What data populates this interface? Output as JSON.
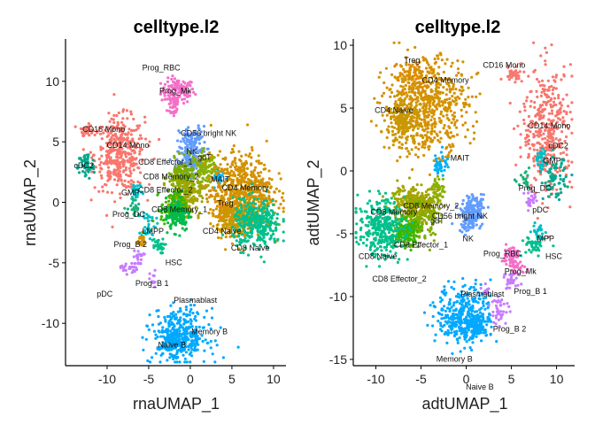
{
  "chart_data": [
    {
      "type": "scatter",
      "title": "celltype.l2",
      "xlabel": "rnaUMAP_1",
      "ylabel": "rnaUMAP_2",
      "xlim": [
        -15,
        11.5
      ],
      "ylim": [
        -13.5,
        13.5
      ],
      "xticks": [
        -10,
        -5,
        0,
        5,
        10
      ],
      "yticks": [
        -10,
        -5,
        0,
        5,
        10
      ],
      "clusters": [
        {
          "name": "Prog_RBC",
          "color": "#f46fc8",
          "center": [
            -1.5,
            9.2
          ],
          "spread": [
            3.2,
            1.6
          ],
          "n": 120
        },
        {
          "name": "Prog_Mk",
          "color": "#f46fc8",
          "center": [
            -2.0,
            8.0
          ],
          "spread": [
            1.2,
            1.6
          ],
          "n": 40
        },
        {
          "name": "CD16 Mono",
          "color": "#f8766d",
          "center": [
            -12.5,
            6.0
          ],
          "spread": [
            1.2,
            0.7
          ],
          "n": 40
        },
        {
          "name": "CD14 Mono",
          "color": "#f8766d",
          "center": [
            -8.5,
            4.0
          ],
          "spread": [
            4.8,
            4.8
          ],
          "n": 380
        },
        {
          "name": "cDC2",
          "color": "#00a98f",
          "center": [
            -12.5,
            3.0
          ],
          "spread": [
            1.6,
            1.8
          ],
          "n": 60
        },
        {
          "name": "GMP",
          "color": "#00bfc4",
          "center": [
            -6.5,
            1.0
          ],
          "spread": [
            1.2,
            1.4
          ],
          "n": 30
        },
        {
          "name": "Prog_DC",
          "color": "#19b37a",
          "center": [
            -6.8,
            -0.6
          ],
          "spread": [
            1.2,
            1.4
          ],
          "n": 25
        },
        {
          "name": "LMPP",
          "color": "#00bfc4",
          "center": [
            -5.0,
            -1.8
          ],
          "spread": [
            1.4,
            2.0
          ],
          "n": 40
        },
        {
          "name": "Prog_B 2",
          "color": "#d39200",
          "center": [
            -6.0,
            -3.2
          ],
          "spread": [
            1.2,
            1.0
          ],
          "n": 20
        },
        {
          "name": "HSC",
          "color": "#00c08b",
          "center": [
            -4.0,
            -3.6
          ],
          "spread": [
            1.4,
            1.0
          ],
          "n": 30
        },
        {
          "name": "Prog_B 1",
          "color": "#c77cff",
          "center": [
            -6.2,
            -4.6
          ],
          "spread": [
            1.0,
            1.0
          ],
          "n": 20
        },
        {
          "name": "pDC",
          "color": "#c77cff",
          "center": [
            -7.4,
            -5.4
          ],
          "spread": [
            1.6,
            0.8
          ],
          "n": 25
        },
        {
          "name": "Plasmablast",
          "color": "#c77cff",
          "center": [
            -4.5,
            -6.5
          ],
          "spread": [
            0.6,
            1.4
          ],
          "n": 15
        },
        {
          "name": "CD56 bright NK",
          "color": "#619cff",
          "center": [
            0.3,
            5.0
          ],
          "spread": [
            2.6,
            2.0
          ],
          "n": 100
        },
        {
          "name": "NK",
          "color": "#619cff",
          "center": [
            0.0,
            3.3
          ],
          "spread": [
            2.6,
            1.8
          ],
          "n": 120
        },
        {
          "name": "gdT",
          "color": "#8ab000",
          "center": [
            1.8,
            2.8
          ],
          "spread": [
            2.2,
            2.2
          ],
          "n": 120
        },
        {
          "name": "CD8 Effector_1",
          "color": "#7cae00",
          "center": [
            -1.0,
            2.0
          ],
          "spread": [
            2.6,
            2.4
          ],
          "n": 160
        },
        {
          "name": "CD8 Memory_2",
          "color": "#a3a500",
          "center": [
            -0.5,
            0.5
          ],
          "spread": [
            2.8,
            2.4
          ],
          "n": 160
        },
        {
          "name": "CD8 Effector_2",
          "color": "#39b600",
          "center": [
            -2.0,
            -0.5
          ],
          "spread": [
            2.4,
            2.2
          ],
          "n": 140
        },
        {
          "name": "CD8 Memory_1",
          "color": "#00bb4e",
          "center": [
            -1.5,
            -1.0
          ],
          "spread": [
            2.4,
            2.2
          ],
          "n": 120
        },
        {
          "name": "MAIT",
          "color": "#00b0f6",
          "center": [
            3.5,
            2.0
          ],
          "spread": [
            1.2,
            1.2
          ],
          "n": 30
        },
        {
          "name": "Treg",
          "color": "#e58700",
          "center": [
            4.0,
            -0.5
          ],
          "spread": [
            1.6,
            1.4
          ],
          "n": 50
        },
        {
          "name": "CD4 Memory",
          "color": "#d39200",
          "center": [
            6.2,
            0.8
          ],
          "spread": [
            6.0,
            5.0
          ],
          "n": 650
        },
        {
          "name": "CD4 Naive",
          "color": "#c99800",
          "center": [
            5.0,
            -1.5
          ],
          "spread": [
            3.0,
            2.2
          ],
          "n": 160
        },
        {
          "name": "CD8 Naive",
          "color": "#00c08b",
          "center": [
            8.0,
            -1.8
          ],
          "spread": [
            4.6,
            3.2
          ],
          "n": 320
        },
        {
          "name": "Memory B",
          "color": "#00a9ff",
          "center": [
            -1.2,
            -11.0
          ],
          "spread": [
            5.2,
            3.4
          ],
          "n": 360
        },
        {
          "name": "Naive B",
          "color": "#00a9ff",
          "center": [
            -2.2,
            -11.6
          ],
          "spread": [
            2.0,
            1.4
          ],
          "n": 80
        }
      ],
      "labels": [
        {
          "text": "Prog_RBC",
          "at": [
            -3.5,
            10.9
          ]
        },
        {
          "text": "Prog_Mk",
          "at": [
            -1.8,
            9.0
          ]
        },
        {
          "text": "CD16 Mono",
          "at": [
            -10.4,
            5.8
          ]
        },
        {
          "text": "CD14 Mono",
          "at": [
            -7.5,
            4.5
          ]
        },
        {
          "text": "cDC2",
          "at": [
            -12.8,
            2.8
          ]
        },
        {
          "text": "CD8 Effector_1",
          "at": [
            -3.0,
            3.1
          ]
        },
        {
          "text": "CD56 bright NK",
          "at": [
            2.2,
            5.5
          ]
        },
        {
          "text": "NK",
          "at": [
            0.2,
            4.0
          ]
        },
        {
          "text": "gdT",
          "at": [
            1.7,
            3.5
          ]
        },
        {
          "text": "MAIT",
          "at": [
            3.6,
            1.7
          ]
        },
        {
          "text": "CD8 Memory_2",
          "at": [
            -2.3,
            1.9
          ]
        },
        {
          "text": "GMP",
          "at": [
            -7.2,
            0.6
          ]
        },
        {
          "text": "CD8 Effector_2",
          "at": [
            -3.0,
            0.8
          ]
        },
        {
          "text": "CD4 Memory",
          "at": [
            6.6,
            1.0
          ]
        },
        {
          "text": "Treg",
          "at": [
            4.2,
            -0.3
          ]
        },
        {
          "text": "CD8 Memory_1",
          "at": [
            -1.3,
            -0.8
          ]
        },
        {
          "text": "Prog_DC",
          "at": [
            -7.4,
            -1.2
          ]
        },
        {
          "text": "LMPP",
          "at": [
            -4.5,
            -2.6
          ]
        },
        {
          "text": "CD4 Naive",
          "at": [
            3.8,
            -2.6
          ]
        },
        {
          "text": "Prog_B 2",
          "at": [
            -7.2,
            -3.7
          ]
        },
        {
          "text": "CD8 Naive",
          "at": [
            7.2,
            -4.0
          ]
        },
        {
          "text": "HSC",
          "at": [
            -2.0,
            -5.2
          ]
        },
        {
          "text": "Prog_B 1",
          "at": [
            -4.6,
            -6.9
          ]
        },
        {
          "text": "pDC",
          "at": [
            -10.3,
            -7.8
          ]
        },
        {
          "text": "Plasmablast",
          "at": [
            0.6,
            -8.3
          ]
        },
        {
          "text": "Memory B",
          "at": [
            2.3,
            -10.9
          ]
        },
        {
          "text": "Naive B",
          "at": [
            -2.2,
            -12.0
          ]
        }
      ]
    },
    {
      "type": "scatter",
      "title": "celltype.l2",
      "xlabel": "adtUMAP_1",
      "ylabel": "adtUMAP_2",
      "xlim": [
        -12.5,
        12
      ],
      "ylim": [
        -15.5,
        10.5
      ],
      "xticks": [
        -10,
        -5,
        0,
        5,
        10
      ],
      "yticks": [
        -15,
        -10,
        -5,
        0,
        5,
        10
      ],
      "clusters": [
        {
          "name": "Treg",
          "color": "#e58700",
          "center": [
            -5.8,
            7.5
          ],
          "spread": [
            3.0,
            2.2
          ],
          "n": 60
        },
        {
          "name": "CD4 Memory",
          "color": "#d39200",
          "center": [
            -4.5,
            5.2
          ],
          "spread": [
            7.5,
            6.0
          ],
          "n": 650
        },
        {
          "name": "CD4 Naive",
          "color": "#c99800",
          "center": [
            -7.0,
            3.8
          ],
          "spread": [
            3.0,
            2.6
          ],
          "n": 160
        },
        {
          "name": "CD16 Mono",
          "color": "#f8766d",
          "center": [
            5.2,
            7.8
          ],
          "spread": [
            1.8,
            0.9
          ],
          "n": 30
        },
        {
          "name": "CD14 Mono",
          "color": "#f8766d",
          "center": [
            9.0,
            3.2
          ],
          "spread": [
            4.4,
            8.0
          ],
          "n": 380
        },
        {
          "name": "cDC2",
          "color": "#00a98f",
          "center": [
            9.8,
            -0.6
          ],
          "spread": [
            2.0,
            2.6
          ],
          "n": 70
        },
        {
          "name": "GMP",
          "color": "#00bfc4",
          "center": [
            8.3,
            1.0
          ],
          "spread": [
            1.2,
            1.4
          ],
          "n": 30
        },
        {
          "name": "Prog_DC",
          "color": "#19b37a",
          "center": [
            6.5,
            -1.0
          ],
          "spread": [
            1.2,
            1.2
          ],
          "n": 20
        },
        {
          "name": "pDC",
          "color": "#c77cff",
          "center": [
            7.2,
            -2.4
          ],
          "spread": [
            1.2,
            1.2
          ],
          "n": 25
        },
        {
          "name": "MPP",
          "color": "#00bfc4",
          "center": [
            8.0,
            -5.0
          ],
          "spread": [
            1.2,
            1.6
          ],
          "n": 30
        },
        {
          "name": "HSC",
          "color": "#00c08b",
          "center": [
            7.4,
            -6.0
          ],
          "spread": [
            2.0,
            1.4
          ],
          "n": 40
        },
        {
          "name": "Prog_RBC",
          "color": "#f46fc8",
          "center": [
            4.8,
            -6.6
          ],
          "spread": [
            1.6,
            1.0
          ],
          "n": 40
        },
        {
          "name": "Prog_Mk",
          "color": "#f46fc8",
          "center": [
            5.5,
            -7.6
          ],
          "spread": [
            2.0,
            1.0
          ],
          "n": 40
        },
        {
          "name": "Prog_B 1",
          "color": "#c77cff",
          "center": [
            5.0,
            -8.8
          ],
          "spread": [
            1.6,
            1.2
          ],
          "n": 30
        },
        {
          "name": "Prog_B 2",
          "color": "#c77cff",
          "center": [
            3.6,
            -11.0
          ],
          "spread": [
            1.8,
            2.0
          ],
          "n": 40
        },
        {
          "name": "Plasmablast",
          "color": "#c77cff",
          "center": [
            2.4,
            -9.4
          ],
          "spread": [
            0.8,
            0.8
          ],
          "n": 10
        },
        {
          "name": "MAIT",
          "color": "#00b0f6",
          "center": [
            -2.8,
            0.6
          ],
          "spread": [
            1.2,
            1.6
          ],
          "n": 40
        },
        {
          "name": "gdT",
          "color": "#8ab000",
          "center": [
            -3.2,
            -1.5
          ],
          "spread": [
            1.4,
            1.6
          ],
          "n": 50
        },
        {
          "name": "CD56 bright NK",
          "color": "#619cff",
          "center": [
            1.2,
            -2.8
          ],
          "spread": [
            1.6,
            1.2
          ],
          "n": 60
        },
        {
          "name": "NK",
          "color": "#619cff",
          "center": [
            0.4,
            -3.6
          ],
          "spread": [
            2.0,
            2.0
          ],
          "n": 120
        },
        {
          "name": "CD8 Memory",
          "color": "#a3a500",
          "center": [
            -6.5,
            -2.4
          ],
          "spread": [
            3.2,
            2.2
          ],
          "n": 150
        },
        {
          "name": "CD8 Memory_2",
          "color": "#a3a500",
          "center": [
            -4.8,
            -2.8
          ],
          "spread": [
            3.0,
            2.4
          ],
          "n": 150
        },
        {
          "name": "CD8 Effector_1",
          "color": "#7cae00",
          "center": [
            -5.5,
            -4.2
          ],
          "spread": [
            3.2,
            2.4
          ],
          "n": 160
        },
        {
          "name": "CD8 Effector_2",
          "color": "#39b600",
          "center": [
            -6.8,
            -5.0
          ],
          "spread": [
            2.6,
            1.8
          ],
          "n": 120
        },
        {
          "name": "CD8 Naive",
          "color": "#00c08b",
          "center": [
            -9.4,
            -4.5
          ],
          "spread": [
            4.0,
            3.6
          ],
          "n": 320
        },
        {
          "name": "Memory B",
          "color": "#00a9ff",
          "center": [
            -0.2,
            -11.5
          ],
          "spread": [
            4.8,
            3.8
          ],
          "n": 360
        },
        {
          "name": "Naive B",
          "color": "#00a9ff",
          "center": [
            1.0,
            -12.4
          ],
          "spread": [
            1.8,
            1.4
          ],
          "n": 80
        }
      ],
      "labels": [
        {
          "text": "Treg",
          "at": [
            -6.0,
            8.6
          ]
        },
        {
          "text": "CD4 Memory",
          "at": [
            -2.3,
            7.0
          ]
        },
        {
          "text": "CD16 Mono",
          "at": [
            4.2,
            8.2
          ]
        },
        {
          "text": "CD4 Naive",
          "at": [
            -8.0,
            4.6
          ]
        },
        {
          "text": "CD14 Mono",
          "at": [
            9.2,
            3.4
          ]
        },
        {
          "text": "cDC2",
          "at": [
            10.2,
            1.8
          ]
        },
        {
          "text": "GMP",
          "at": [
            9.5,
            0.6
          ]
        },
        {
          "text": "MAIT",
          "at": [
            -0.7,
            0.8
          ]
        },
        {
          "text": "Prog_DC",
          "at": [
            7.6,
            -1.6
          ]
        },
        {
          "text": "CD8 Memory_2",
          "at": [
            -3.9,
            -3.0
          ]
        },
        {
          "text": "gdT",
          "at": [
            -3.2,
            -4.2
          ]
        },
        {
          "text": "CD8 Memory",
          "at": [
            -8.0,
            -3.5
          ]
        },
        {
          "text": "pDC",
          "at": [
            8.2,
            -3.3
          ]
        },
        {
          "text": "CD56 bright NK",
          "at": [
            -0.7,
            -3.8
          ]
        },
        {
          "text": "NK",
          "at": [
            0.2,
            -5.6
          ]
        },
        {
          "text": "MPP",
          "at": [
            8.8,
            -5.6
          ]
        },
        {
          "text": "CD8 Effector_1",
          "at": [
            -5.0,
            -6.1
          ]
        },
        {
          "text": "Prog_RBC",
          "at": [
            4.0,
            -6.8
          ]
        },
        {
          "text": "HSC",
          "at": [
            9.7,
            -7.0
          ]
        },
        {
          "text": "CD8 Naive",
          "at": [
            -9.8,
            -7.0
          ]
        },
        {
          "text": "Prog_Mk",
          "at": [
            6.0,
            -8.2
          ]
        },
        {
          "text": "CD8 Effector_2",
          "at": [
            -7.4,
            -8.8
          ]
        },
        {
          "text": "Prog_B 1",
          "at": [
            7.1,
            -9.8
          ]
        },
        {
          "text": "Plasmablast",
          "at": [
            1.8,
            -10.0
          ]
        },
        {
          "text": "Prog_B 2",
          "at": [
            4.8,
            -12.8
          ]
        },
        {
          "text": "Memory B",
          "at": [
            -1.3,
            -15.2
          ]
        },
        {
          "text": "Naive B",
          "at": [
            1.5,
            -17.4
          ]
        }
      ]
    }
  ]
}
